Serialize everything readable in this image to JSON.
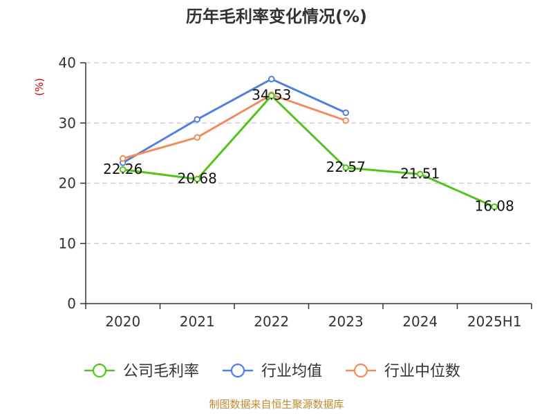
{
  "chart_data": {
    "type": "line",
    "title": "历年毛利率变化情况(%)",
    "unit_label": "(%)",
    "categories": [
      "2020",
      "2021",
      "2022",
      "2023",
      "2024",
      "2025H1"
    ],
    "ylim": [
      0,
      40
    ],
    "yticks": [
      "0",
      "10",
      "20",
      "30",
      "40"
    ],
    "grid": true,
    "legend_position": "bottom",
    "series": [
      {
        "name": "公司毛利率",
        "color": "#52c41a",
        "values": [
          22.26,
          20.68,
          34.53,
          22.57,
          21.51,
          16.08
        ],
        "labels": [
          "22.26",
          "20.68",
          "34.53",
          "22.57",
          "21.51",
          "16.08"
        ]
      },
      {
        "name": "行业均值",
        "color": "#4f7fe0",
        "values": [
          23.4,
          30.6,
          37.3,
          31.7,
          null,
          null
        ]
      },
      {
        "name": "行业中位数",
        "color": "#f28c5a",
        "values": [
          24.1,
          27.6,
          34.7,
          30.4,
          null,
          null
        ]
      }
    ]
  },
  "source": "制图数据来自恒生聚源数据库"
}
